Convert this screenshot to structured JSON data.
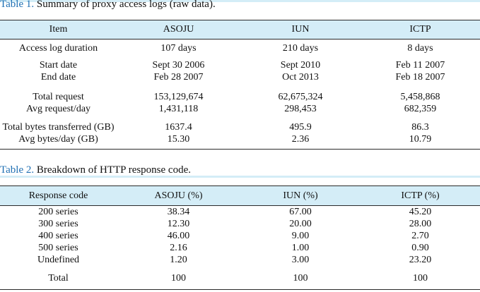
{
  "table1": {
    "caption_label": "Table 1.",
    "caption_text": " Summary of proxy access logs (raw data).",
    "headers": [
      "Item",
      "ASOJU",
      "IUN",
      "ICTP"
    ],
    "rows": [
      {
        "item": [
          "Access log duration"
        ],
        "asoju": [
          "107 days"
        ],
        "iun": [
          "210 days"
        ],
        "ictp": [
          "8 days"
        ]
      },
      {
        "item": [
          "Start date",
          "End date"
        ],
        "asoju": [
          "Sept 30 2006",
          "Feb 28 2007"
        ],
        "iun": [
          "Sept 2010",
          "Oct 2013"
        ],
        "ictp": [
          "Feb 11 2007",
          "Feb 18 2007"
        ]
      },
      {
        "item": [
          "Total request",
          "Avg request/day"
        ],
        "asoju": [
          "153,129,674",
          "1,431,118"
        ],
        "iun": [
          "62,675,324",
          "298,453"
        ],
        "ictp": [
          "5,458,868",
          "682,359"
        ]
      },
      {
        "item": [
          "Total bytes transferred (GB)",
          "Avg bytes/day (GB)"
        ],
        "asoju": [
          "1637.4",
          "15.30"
        ],
        "iun": [
          "495.9",
          "2.36"
        ],
        "ictp": [
          "86.3",
          "10.79"
        ]
      }
    ]
  },
  "table2": {
    "caption_label": "Table 2.",
    "caption_text": " Breakdown of HTTP response code.",
    "headers": [
      "Response code",
      "ASOJU (%)",
      "IUN (%)",
      "ICTP (%)"
    ],
    "rows": [
      {
        "code": [
          "200 series",
          "300 series",
          "400 series",
          "500 series",
          "Undefined"
        ],
        "asoju": [
          "38.34",
          "12.30",
          "46.00",
          "2.16",
          "1.20"
        ],
        "iun": [
          "67.00",
          "20.00",
          "9.00",
          "1.00",
          "3.00"
        ],
        "ictp": [
          "45.20",
          "28.00",
          "2.70",
          "0.90",
          "23.20"
        ]
      },
      {
        "code": [
          "Total"
        ],
        "asoju": [
          "100"
        ],
        "iun": [
          "100"
        ],
        "ictp": [
          "100"
        ]
      }
    ]
  }
}
